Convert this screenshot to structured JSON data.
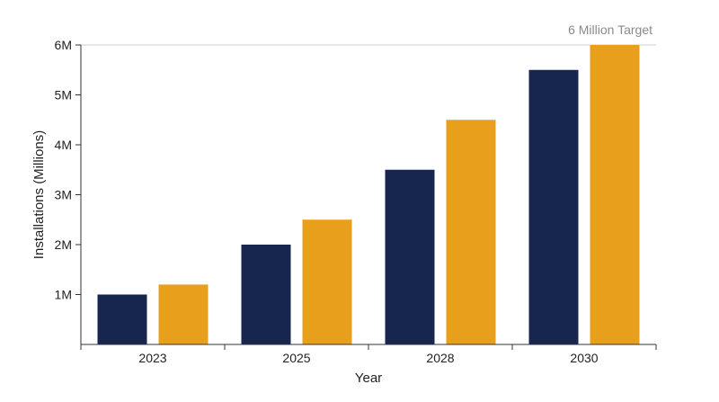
{
  "chart_data": {
    "type": "bar",
    "categories": [
      "2023",
      "2025",
      "2028",
      "2030"
    ],
    "series": [
      {
        "values": [
          1.0,
          2.0,
          3.5,
          5.5
        ]
      },
      {
        "values": [
          1.2,
          2.5,
          4.5,
          6.0
        ]
      }
    ],
    "colors": [
      "#16264f",
      "#e8a01c"
    ],
    "xlabel": "Year",
    "ylabel": "Installations (Millions)",
    "ylim": [
      0,
      6
    ],
    "yticks": [
      {
        "value": 1,
        "label": "1M"
      },
      {
        "value": 2,
        "label": "2M"
      },
      {
        "value": 3,
        "label": "3M"
      },
      {
        "value": 4,
        "label": "4M"
      },
      {
        "value": 5,
        "label": "5M"
      },
      {
        "value": 6,
        "label": "6M"
      }
    ],
    "reference_line": {
      "value": 6,
      "label": "6 Million Target",
      "color": "#cccccc"
    },
    "grid": false,
    "legend": "none"
  }
}
